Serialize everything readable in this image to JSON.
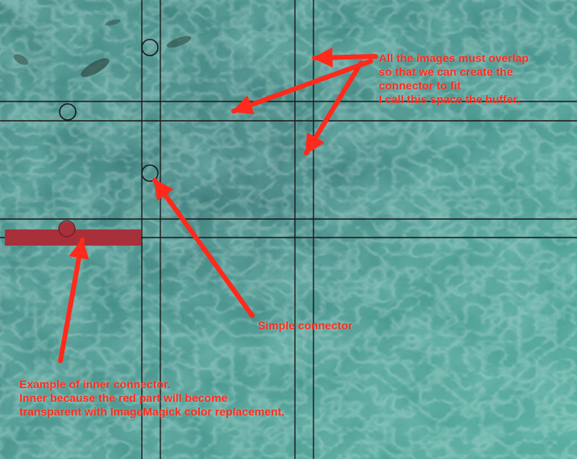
{
  "image": {
    "background": "underwater-photo",
    "overlay_color": "#1a1a1a",
    "accent_color": "#ff2a1c",
    "connector_fill": "#a8303a"
  },
  "annotations": {
    "buffer_note": {
      "lines": [
        "All the images must overlap",
        "so that we can create the",
        "connector to fit",
        "I call this space the buffer."
      ]
    },
    "simple_connector_note": {
      "text": "Simple connector"
    },
    "inner_connector_note": {
      "lines": [
        "Example of inner connector.",
        "Inner because the red part will become",
        "transparent with ImageMagick color replacement."
      ]
    }
  }
}
